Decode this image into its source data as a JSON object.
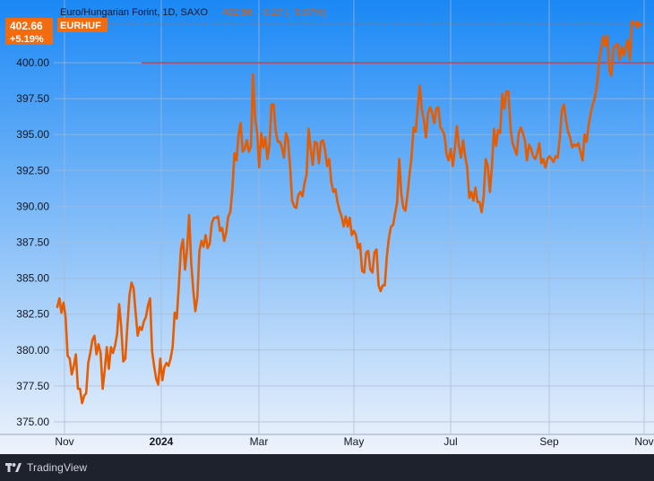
{
  "header": {
    "symbol_name": "Euro/Hungarian Forint, 1D, SAXO",
    "last_value": "402.66",
    "change_text": "−0.27 (−0.07%)",
    "ticker_badge": "EURHUF",
    "price_badge": "402.66",
    "pct_badge": "+5.19%"
  },
  "footer": {
    "brand": "TradingView"
  },
  "colors": {
    "background_top": "#1a88f5",
    "background_bottom": "#eef3fb",
    "series": "#e65c00",
    "reference_line": "#e8312f",
    "badge": "#f26b0f",
    "text": "#131722"
  },
  "chart_data": {
    "type": "line",
    "title": "Euro/Hungarian Forint, 1D, SAXO",
    "xlabel": "",
    "ylabel": "",
    "x_tick_labels": [
      "Nov",
      "2024",
      "Mar",
      "May",
      "Jul",
      "Sep",
      "Nov"
    ],
    "y_tick_labels": [
      "375.00",
      "377.50",
      "380.00",
      "382.50",
      "385.00",
      "387.50",
      "390.00",
      "392.50",
      "395.00",
      "397.50",
      "400.00"
    ],
    "ylim": [
      374.0,
      403.0
    ],
    "grid": true,
    "reference_line": 400.0,
    "last_value": 402.66,
    "series": [
      {
        "values": [
          383.0,
          383.6,
          382.6,
          383.3,
          382.3,
          379.6,
          379.4,
          378.3,
          378.9,
          379.7,
          377.3,
          377.3,
          376.3,
          376.8,
          377.0,
          379.1,
          379.8,
          380.7,
          381.0,
          379.7,
          380.4,
          379.8,
          377.3,
          378.6,
          380.2,
          378.7,
          380.2,
          379.8,
          380.3,
          381.1,
          383.2,
          381.6,
          379.2,
          379.4,
          381.7,
          383.8,
          384.7,
          384.3,
          382.6,
          381.0,
          381.6,
          381.4,
          382.0,
          382.3,
          383.1,
          383.6,
          379.9,
          378.9,
          378.0,
          377.6,
          379.4,
          377.9,
          378.8,
          379.1,
          378.9,
          379.4,
          380.2,
          382.6,
          382.2,
          384.5,
          387.0,
          387.7,
          385.6,
          387.0,
          389.4,
          386.1,
          384.2,
          382.7,
          383.7,
          386.9,
          387.6,
          387.2,
          388.0,
          387.1,
          387.4,
          388.8,
          389.2,
          389.2,
          389.3,
          388.3,
          388.5,
          387.6,
          388.2,
          389.3,
          389.6,
          391.2,
          393.7,
          393.2,
          395.0,
          395.8,
          393.8,
          394.0,
          394.6,
          393.8,
          394.2,
          399.2,
          396.1,
          395.2,
          392.7,
          395.1,
          394.1,
          394.8,
          393.3,
          394.3,
          397.1,
          397.1,
          395.3,
          394.5,
          394.5,
          394.1,
          393.4,
          395.1,
          394.6,
          392.8,
          390.4,
          390.0,
          389.9,
          390.8,
          391.0,
          390.7,
          391.6,
          392.2,
          395.4,
          394.0,
          392.9,
          394.5,
          394.4,
          393.0,
          394.5,
          394.6,
          393.9,
          392.8,
          393.3,
          391.7,
          391.0,
          391.2,
          390.3,
          389.7,
          389.3,
          388.6,
          389.3,
          388.6,
          389.2,
          388.0,
          388.3,
          388.0,
          387.1,
          387.4,
          385.5,
          385.4,
          386.8,
          386.9,
          385.6,
          385.4,
          386.8,
          387.0,
          384.5,
          384.1,
          384.5,
          384.5,
          386.5,
          387.8,
          388.6,
          388.7,
          389.5,
          390.3,
          393.3,
          390.9,
          389.9,
          389.7,
          390.8,
          392.2,
          393.5,
          395.5,
          395.2,
          396.9,
          398.4,
          396.7,
          396.0,
          394.8,
          396.5,
          396.9,
          396.5,
          395.8,
          396.8,
          396.9,
          395.5,
          395.3,
          394.9,
          393.6,
          393.2,
          394.0,
          392.8,
          394.0,
          395.6,
          394.2,
          393.4,
          394.6,
          393.5,
          392.7,
          390.6,
          391.0,
          390.4,
          391.3,
          390.3,
          390.3,
          389.6,
          390.7,
          393.3,
          392.8,
          391.0,
          392.8,
          395.4,
          394.2,
          395.3,
          395.1,
          397.8,
          396.8,
          398.0,
          398.0,
          395.5,
          394.4,
          394.0,
          393.6,
          395.1,
          395.5,
          395.1,
          394.6,
          393.2,
          394.3,
          394.0,
          393.5,
          393.3,
          393.7,
          394.4,
          393.0,
          393.3,
          392.7,
          393.3,
          393.5,
          393.3,
          393.1,
          393.5,
          393.4,
          394.8,
          396.7,
          397.1,
          396.0,
          395.2,
          394.8,
          394.1,
          394.3,
          394.2,
          394.4,
          393.8,
          393.2,
          395.0,
          394.5,
          395.7,
          396.5,
          397.1,
          397.6,
          398.4,
          399.9,
          401.0,
          401.8,
          401.2,
          401.9,
          399.5,
          399.1,
          401.0,
          401.2,
          401.3,
          400.2,
          401.1,
          400.5,
          401.1,
          401.6,
          400.2,
          402.9,
          402.7,
          402.66
        ]
      }
    ]
  }
}
